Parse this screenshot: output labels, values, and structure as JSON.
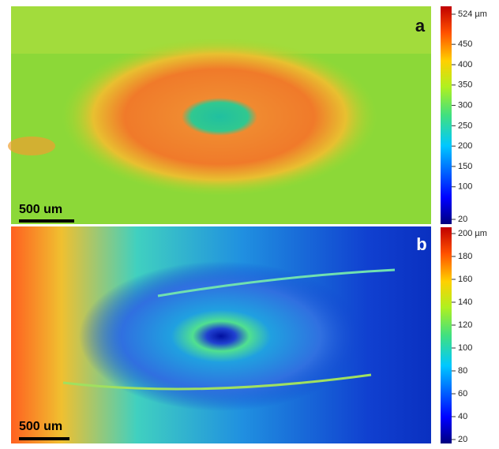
{
  "panels": [
    {
      "label": "a",
      "scale_bar": "500 um",
      "colorbar": {
        "lim": [
          20,
          524
        ],
        "ticks": [
          {
            "value": 524,
            "label": "524 µm"
          },
          450,
          400,
          350,
          300,
          250,
          200,
          150,
          100,
          20
        ]
      }
    },
    {
      "label": "b",
      "scale_bar": "500 um",
      "colorbar": {
        "lim": [
          20,
          200
        ],
        "ticks": [
          {
            "value": 200,
            "label": "200 µm"
          },
          180,
          160,
          140,
          120,
          100,
          80,
          60,
          40,
          20
        ]
      }
    }
  ]
}
